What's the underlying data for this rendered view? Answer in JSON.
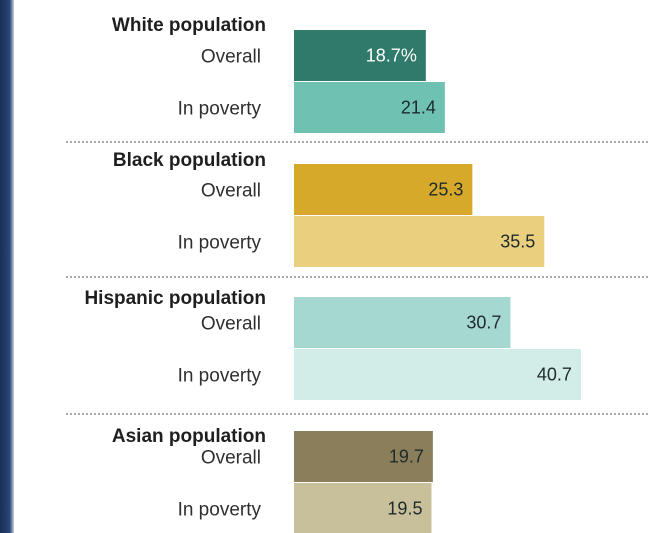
{
  "chart_data": {
    "type": "bar",
    "orientation": "horizontal",
    "value_format": "first label shows %",
    "groups": [
      {
        "title": "White population",
        "bars": [
          {
            "label": "Overall",
            "value": 18.7,
            "display": "18.7%",
            "color": "#2f7a6b",
            "text_color": "#ffffff"
          },
          {
            "label": "In poverty",
            "value": 21.4,
            "display": "21.4",
            "color": "#6fc1b2",
            "text_color": "#1f2a2c"
          }
        ]
      },
      {
        "title": "Black population",
        "bars": [
          {
            "label": "Overall",
            "value": 25.3,
            "display": "25.3",
            "color": "#d7a92a",
            "text_color": "#1f2a2c"
          },
          {
            "label": "In poverty",
            "value": 35.5,
            "display": "35.5",
            "color": "#ead07e",
            "text_color": "#1f2a2c"
          }
        ]
      },
      {
        "title": "Hispanic population",
        "bars": [
          {
            "label": "Overall",
            "value": 30.7,
            "display": "30.7",
            "color": "#a6d8d2",
            "text_color": "#1f2a2c"
          },
          {
            "label": "In poverty",
            "value": 40.7,
            "display": "40.7",
            "color": "#d2ece8",
            "text_color": "#1f2a2c"
          }
        ]
      },
      {
        "title": "Asian population",
        "bars": [
          {
            "label": "Overall",
            "value": 19.7,
            "display": "19.7",
            "color": "#8b7f5b",
            "text_color": "#1f2a2c"
          },
          {
            "label": "In poverty",
            "value": 19.5,
            "display": "19.5",
            "color": "#c8bf9b",
            "text_color": "#1f2a2c"
          }
        ]
      }
    ]
  }
}
